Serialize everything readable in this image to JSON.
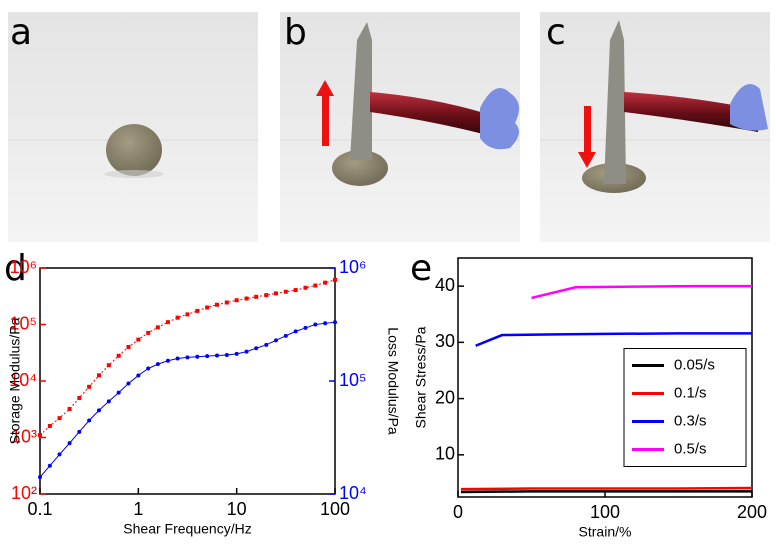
{
  "photos": [
    {
      "label": "a"
    },
    {
      "label": "b"
    },
    {
      "label": "c"
    }
  ],
  "chart_data": [
    {
      "type": "line",
      "panel_label": "d",
      "x_label": "Shear Frequency/Hz",
      "y_label": "Storage Modulus/Pa",
      "y2_label": "Loss Modulus/Pa",
      "xscale": "log",
      "yscale": "log",
      "y2scale": "log",
      "xlim": [
        0.1,
        100
      ],
      "xticks": [
        0.1,
        1,
        10,
        100
      ],
      "ylim": [
        100,
        1000000
      ],
      "yticks": [
        {
          "value": 100,
          "label": "10²"
        },
        {
          "value": 1000,
          "label": "10³"
        },
        {
          "value": 10000,
          "label": "10⁴"
        },
        {
          "value": 100000,
          "label": "10⁵"
        },
        {
          "value": 1000000,
          "label": "10⁶"
        }
      ],
      "y2lim": [
        10000,
        1000000
      ],
      "y2ticks": [
        {
          "value": 10000,
          "label": "10⁴"
        },
        {
          "value": 100000,
          "label": "10⁵"
        },
        {
          "value": 1000000,
          "label": "10⁶"
        }
      ],
      "x": [
        0.1,
        0.126,
        0.158,
        0.2,
        0.251,
        0.316,
        0.398,
        0.501,
        0.631,
        0.794,
        1,
        1.26,
        1.58,
        2,
        2.51,
        3.16,
        3.98,
        5.01,
        6.31,
        7.94,
        10,
        12.6,
        15.8,
        20,
        25.1,
        31.6,
        39.8,
        50.1,
        63.1,
        79.4,
        100
      ],
      "series": [
        {
          "color": "#ff0000",
          "marker": "square",
          "values": [
            1100,
            1600,
            2200,
            3200,
            5000,
            7900,
            12600,
            19000,
            28000,
            40000,
            54000,
            71000,
            89000,
            110000,
            132000,
            151000,
            174000,
            200000,
            224000,
            245000,
            269000,
            288000,
            309000,
            331000,
            355000,
            380000,
            407000,
            447000,
            490000,
            550000,
            617000
          ]
        },
        {
          "color": "#0000ff",
          "marker": "circle",
          "axis": "y2",
          "values": [
            14100,
            17800,
            22400,
            28200,
            35500,
            44700,
            55000,
            66000,
            79000,
            95000,
            112000,
            129000,
            141000,
            151000,
            158000,
            162000,
            164000,
            166000,
            168000,
            170000,
            174000,
            182000,
            195000,
            209000,
            229000,
            251000,
            275000,
            295000,
            316000,
            324000,
            331000
          ]
        }
      ]
    },
    {
      "type": "line",
      "panel_label": "e",
      "x_label": "Strain/%",
      "y_label": "Shear Stress/Pa",
      "xlim": [
        0,
        200
      ],
      "xticks": [
        0,
        100,
        200
      ],
      "ylim": [
        2.5,
        45
      ],
      "yticks": [
        10,
        20,
        30,
        40
      ],
      "legend": "center right",
      "series": [
        {
          "name": "0.05/s",
          "color": "#000000",
          "x": [
            2,
            50,
            100,
            150,
            200
          ],
          "values": [
            3.4,
            3.5,
            3.5,
            3.5,
            3.5
          ]
        },
        {
          "name": "0.1/s",
          "color": "#ff0000",
          "x": [
            2,
            50,
            100,
            150,
            200
          ],
          "values": [
            3.9,
            4,
            4,
            4,
            4.1
          ]
        },
        {
          "name": "0.3/s",
          "color": "#0000ff",
          "x": [
            12,
            30,
            60,
            100,
            150,
            200
          ],
          "values": [
            29.4,
            31.3,
            31.4,
            31.5,
            31.6,
            31.6
          ]
        },
        {
          "name": "0.5/s",
          "color": "#ff00ff",
          "x": [
            50,
            80,
            120,
            160,
            200
          ],
          "values": [
            37.9,
            39.8,
            39.9,
            40,
            40
          ]
        }
      ]
    }
  ]
}
